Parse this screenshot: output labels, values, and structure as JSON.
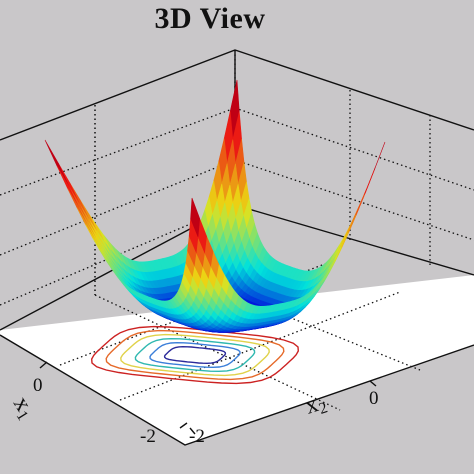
{
  "chart_data": {
    "type": "surface3d",
    "title": "3D View",
    "xlabel": "x",
    "xlabel_sub": "1",
    "ylabel": "x",
    "ylabel_sub": "2",
    "x_ticks": [
      "-2",
      "0"
    ],
    "y_ticks": [
      "-2",
      "0"
    ],
    "xlim": [
      -2,
      2
    ],
    "ylim": [
      -2,
      2
    ],
    "colormap": "jet",
    "contour_levels": 5,
    "grid": "dotted",
    "surface": "bowl with four raised corners; low flat region near the center, peaks at the four corners"
  },
  "colors": {
    "background": "#c9c7c9",
    "floor": "#ffffff",
    "box_lines": "#000000",
    "jet_low": "#2b1e8f",
    "jet_high": "#d81c1c"
  }
}
